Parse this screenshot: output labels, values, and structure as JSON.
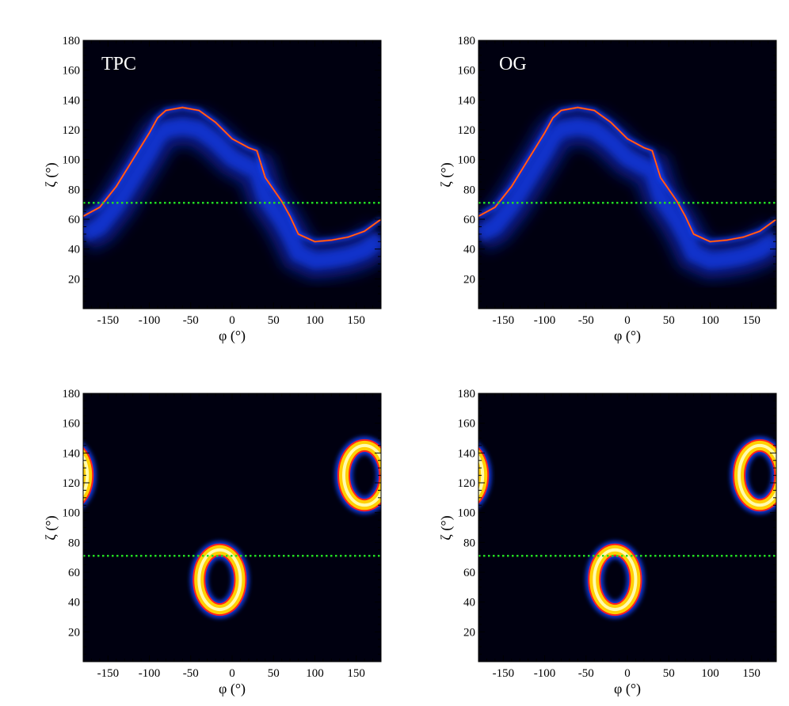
{
  "figure": {
    "panels": [
      {
        "id": "tpc-top",
        "label": "TPC"
      },
      {
        "id": "og-top",
        "label": "OG"
      },
      {
        "id": "tpc-bottom",
        "label": ""
      },
      {
        "id": "og-bottom",
        "label": ""
      }
    ]
  },
  "colors": {
    "background": "#000010",
    "reference_line": "#22dd22",
    "colormap": [
      "#000010",
      "#1020a0",
      "#1844ff",
      "#ff2020",
      "#ffd000",
      "#ffffc0"
    ]
  },
  "chart_data": [
    {
      "type": "heatmap",
      "title": "",
      "label": "TPC",
      "xlabel": "φ (°)",
      "ylabel": "ζ (°)",
      "xlim": [
        -180,
        180
      ],
      "ylim": [
        0,
        180
      ],
      "xticks": [
        -150,
        -100,
        -50,
        0,
        50,
        100,
        150
      ],
      "yticks": [
        20,
        40,
        60,
        80,
        100,
        120,
        140,
        160,
        180
      ],
      "reference_line_zeta": 71,
      "caustic": {
        "phi": [
          -180,
          -160,
          -140,
          -120,
          -100,
          -90,
          -80,
          -60,
          -40,
          -20,
          0,
          20,
          30,
          40,
          60,
          70,
          80,
          100,
          120,
          140,
          160,
          180
        ],
        "zeta": [
          62,
          68,
          82,
          100,
          118,
          128,
          133,
          135,
          133,
          125,
          114,
          108,
          106,
          88,
          72,
          62,
          50,
          45,
          46,
          48,
          52,
          60
        ]
      },
      "grid": false,
      "legend": "none"
    },
    {
      "type": "heatmap",
      "title": "",
      "label": "OG",
      "xlabel": "φ (°)",
      "ylabel": "ζ (°)",
      "xlim": [
        -180,
        180
      ],
      "ylim": [
        0,
        180
      ],
      "xticks": [
        -150,
        -100,
        -50,
        0,
        50,
        100,
        150
      ],
      "yticks": [
        20,
        40,
        60,
        80,
        100,
        120,
        140,
        160,
        180
      ],
      "reference_line_zeta": 71,
      "caustic": {
        "phi": [
          -180,
          -160,
          -140,
          -120,
          -100,
          -90,
          -80,
          -60,
          -40,
          -20,
          0,
          20,
          30,
          40,
          60,
          70,
          80,
          100,
          120,
          140,
          160,
          180
        ],
        "zeta": [
          62,
          68,
          82,
          100,
          118,
          128,
          133,
          135,
          133,
          125,
          114,
          108,
          106,
          88,
          72,
          62,
          50,
          45,
          46,
          48,
          52,
          60
        ]
      },
      "grid": false,
      "legend": "none"
    },
    {
      "type": "heatmap",
      "title": "",
      "xlabel": "φ (°)",
      "ylabel": "ζ (°)",
      "xlim": [
        -180,
        180
      ],
      "ylim": [
        0,
        180
      ],
      "xticks": [
        -150,
        -100,
        -50,
        0,
        50,
        100,
        150
      ],
      "yticks": [
        20,
        40,
        60,
        80,
        100,
        120,
        140,
        160,
        180
      ],
      "reference_line_zeta": 71,
      "rings": [
        {
          "phi": -15,
          "zeta": 55,
          "half_width": 25,
          "half_height": 20
        },
        {
          "phi": 160,
          "zeta": 125,
          "half_width": 25,
          "half_height": 20
        },
        {
          "phi": -200,
          "zeta": 125,
          "half_width": 25,
          "half_height": 20
        }
      ],
      "grid": false,
      "legend": "none"
    },
    {
      "type": "heatmap",
      "title": "",
      "xlabel": "φ (°)",
      "ylabel": "ζ (°)",
      "xlim": [
        -180,
        180
      ],
      "ylim": [
        0,
        180
      ],
      "xticks": [
        -150,
        -100,
        -50,
        0,
        50,
        100,
        150
      ],
      "yticks": [
        20,
        40,
        60,
        80,
        100,
        120,
        140,
        160,
        180
      ],
      "reference_line_zeta": 71,
      "rings": [
        {
          "phi": -15,
          "zeta": 55,
          "half_width": 25,
          "half_height": 20
        },
        {
          "phi": 160,
          "zeta": 125,
          "half_width": 25,
          "half_height": 20
        },
        {
          "phi": -200,
          "zeta": 125,
          "half_width": 25,
          "half_height": 20
        }
      ],
      "grid": false,
      "legend": "none"
    }
  ]
}
